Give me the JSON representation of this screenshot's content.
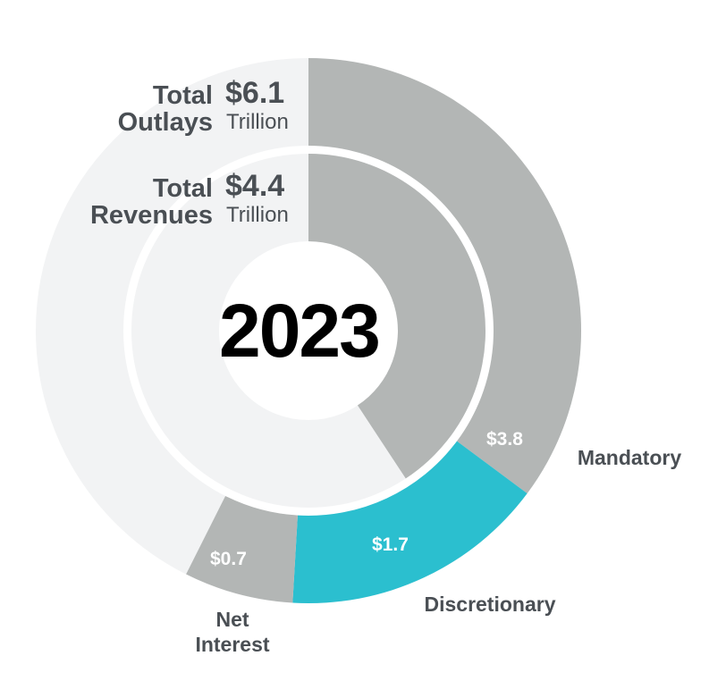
{
  "chart_data": {
    "type": "donut",
    "center_label": "2023",
    "rlim": [
      0,
      10.8
    ],
    "track_color": "#f2f3f4",
    "outer": {
      "title": "Total Outlays",
      "value": 6.1,
      "value_label": "$6.1",
      "unit": "Trillion"
    },
    "inner": {
      "title": "Total Revenues",
      "value": 4.4,
      "value_label": "$4.4",
      "unit": "Trillion",
      "color": "#b3b6b5"
    },
    "categories": [
      "Mandatory",
      "Discretionary",
      "Net Interest"
    ],
    "series": [
      {
        "values": [
          3.8,
          1.7,
          0.7
        ],
        "value_labels": [
          "$3.8",
          "$1.7",
          "$0.7"
        ],
        "colors": [
          "#b3b6b5",
          "#2bbfcf",
          "#b3b6b5"
        ]
      }
    ]
  }
}
